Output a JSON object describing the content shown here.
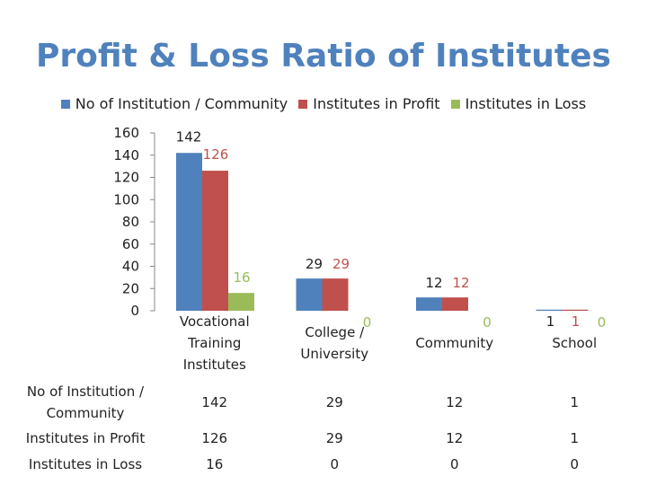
{
  "chart_data": {
    "type": "bar",
    "title": "Profit & Loss Ratio of Institutes",
    "categories": [
      "Vocational Training Institutes",
      "College / University",
      "Community",
      "School"
    ],
    "series": [
      {
        "name": "No of Institution / Community",
        "color": "#4f81bd",
        "values": [
          142,
          29,
          12,
          1
        ]
      },
      {
        "name": "Institutes in Profit",
        "color": "#c0504d",
        "values": [
          126,
          29,
          12,
          1
        ]
      },
      {
        "name": "Institutes in Loss",
        "color": "#9bbb59",
        "values": [
          16,
          0,
          0,
          0
        ]
      }
    ],
    "ylim": [
      0,
      160
    ],
    "yticks": [
      "160",
      "140",
      "120",
      "100",
      "80",
      "60",
      "40",
      "20",
      "0"
    ],
    "legend_position": "top",
    "data_table": {
      "rows": [
        {
          "label": "No of Institution / Community",
          "cells": [
            "142",
            "29",
            "12",
            "1"
          ]
        },
        {
          "label": "Institutes in Profit",
          "cells": [
            "126",
            "29",
            "12",
            "1"
          ]
        },
        {
          "label": "Institutes in Loss",
          "cells": [
            "16",
            "0",
            "0",
            "0"
          ]
        }
      ]
    }
  }
}
